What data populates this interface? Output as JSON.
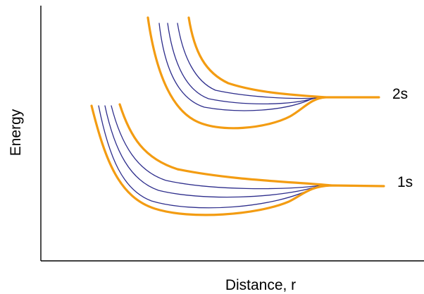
{
  "axes": {
    "x_label": "Distance, r",
    "y_label": "Energy"
  },
  "levels": [
    {
      "label": "1s"
    },
    {
      "label": "2s"
    }
  ],
  "colors": {
    "envelope": "#f39c12",
    "inner_curves": "#2e2e8c",
    "axis": "#000000"
  }
}
